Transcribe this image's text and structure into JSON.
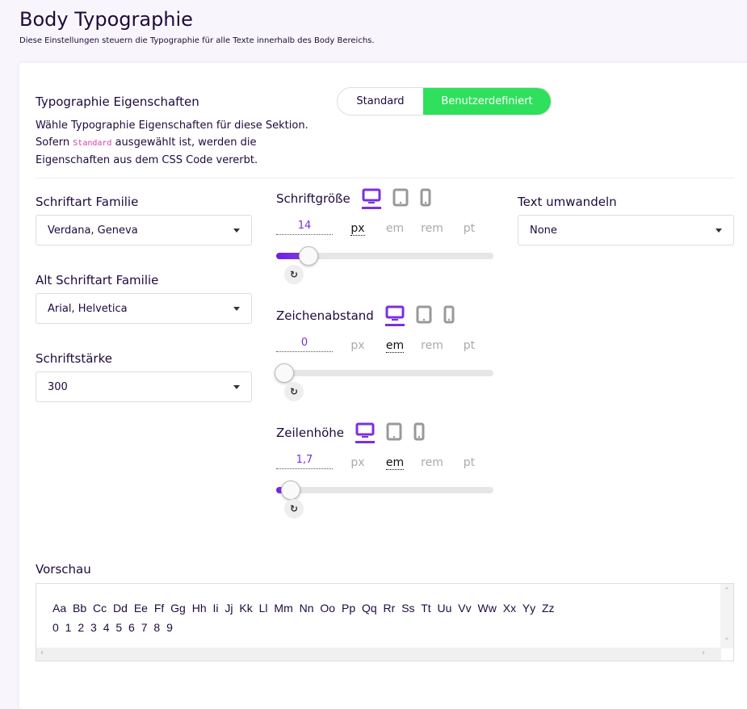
{
  "header": {
    "title": "Body Typographie",
    "subtitle": "Diese Einstellungen steuern die Typographie für alle Texte innerhalb des Body Bereichs."
  },
  "section": {
    "label": "Typographie Eigenschaften",
    "desc_line1": "Wähle Typographie Eigenschaften für diese Sektion.",
    "desc_pre": "Sofern ",
    "desc_code": "Standard",
    "desc_post": " ausgewählt ist, werden die",
    "desc_line3": "Eigenschaften aus dem CSS Code vererbt.",
    "toggle": {
      "standard": "Standard",
      "custom": "Benutzerdefiniert",
      "active": "custom"
    }
  },
  "colors": {
    "accent": "#7b2fe0",
    "active_toggle": "#2fe05c",
    "title": "#1e0a3c"
  },
  "selects": [
    {
      "label": "Schriftart Familie",
      "value": "Verdana, Geneva"
    },
    {
      "label": "Alt Schriftart Familie",
      "value": "Arial, Helvetica"
    },
    {
      "label": "Schriftstärke",
      "value": "300"
    },
    {
      "label": "Text umwandeln",
      "value": "None"
    }
  ],
  "sliders": [
    {
      "label": "Schriftgröße",
      "value": "14",
      "units": [
        "px",
        "em",
        "rem",
        "pt"
      ],
      "unit": "px",
      "fill": 0.15,
      "device": "desktop"
    },
    {
      "label": "Zeichenabstand",
      "value": "0",
      "units": [
        "px",
        "em",
        "rem",
        "pt"
      ],
      "unit": "em",
      "fill": 0,
      "device": "desktop"
    },
    {
      "label": "Zeilenhöhe",
      "value": "1,7",
      "units": [
        "px",
        "em",
        "rem",
        "pt"
      ],
      "unit": "em",
      "fill": 0.03,
      "device": "desktop"
    }
  ],
  "preview": {
    "label": "Vorschau",
    "letters": "Aa Bb Cc Dd Ee Ff Gg Hh Ii Jj Kk Ll Mm Nn Oo Pp Qq Rr Ss Tt Uu Vv Ww Xx Yy Zz",
    "digits": "0 1 2 3 4 5 6 7 8 9"
  }
}
